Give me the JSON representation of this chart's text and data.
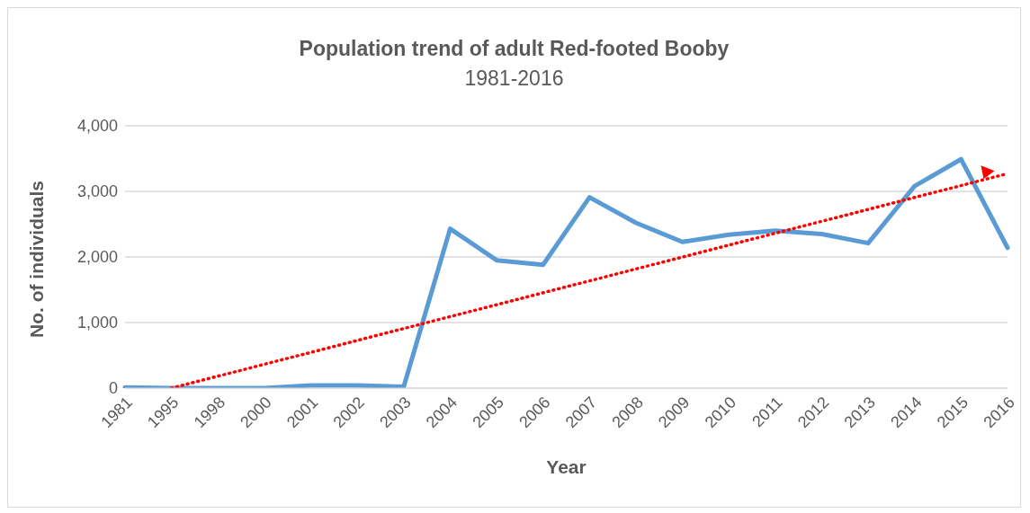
{
  "chart_data": {
    "type": "line",
    "title": "Population trend of adult Red-footed Booby",
    "subtitle": "1981-2016",
    "xlabel": "Year",
    "ylabel": "No. of individuals",
    "categories": [
      "1981",
      "1995",
      "1998",
      "2000",
      "2001",
      "2002",
      "2003",
      "2004",
      "2005",
      "2006",
      "2007",
      "2008",
      "2009",
      "2010",
      "2011",
      "2012",
      "2013",
      "2014",
      "2015",
      "2016"
    ],
    "series": [
      {
        "color": "#5b9bd5",
        "values": [
          10,
          0,
          0,
          0,
          40,
          40,
          20,
          2430,
          1950,
          1880,
          2910,
          2520,
          2230,
          2340,
          2400,
          2350,
          2210,
          3080,
          3490,
          2140
        ]
      },
      {
        "type": "line",
        "color": "#ff0000",
        "line_style": "dotted",
        "values": [
          null,
          0,
          null,
          null,
          null,
          null,
          null,
          null,
          null,
          null,
          null,
          null,
          null,
          null,
          null,
          null,
          null,
          null,
          null,
          3270
        ]
      }
    ],
    "ylim": [
      0,
      4000
    ],
    "yticks": [
      {
        "value": 0,
        "label": "0"
      },
      {
        "value": 1000,
        "label": "1,000"
      },
      {
        "value": 2000,
        "label": "2,000"
      },
      {
        "value": 3000,
        "label": "3,000"
      },
      {
        "value": 4000,
        "label": "4,000"
      }
    ],
    "grid": "y",
    "marker": "none",
    "line_style": "solid"
  }
}
